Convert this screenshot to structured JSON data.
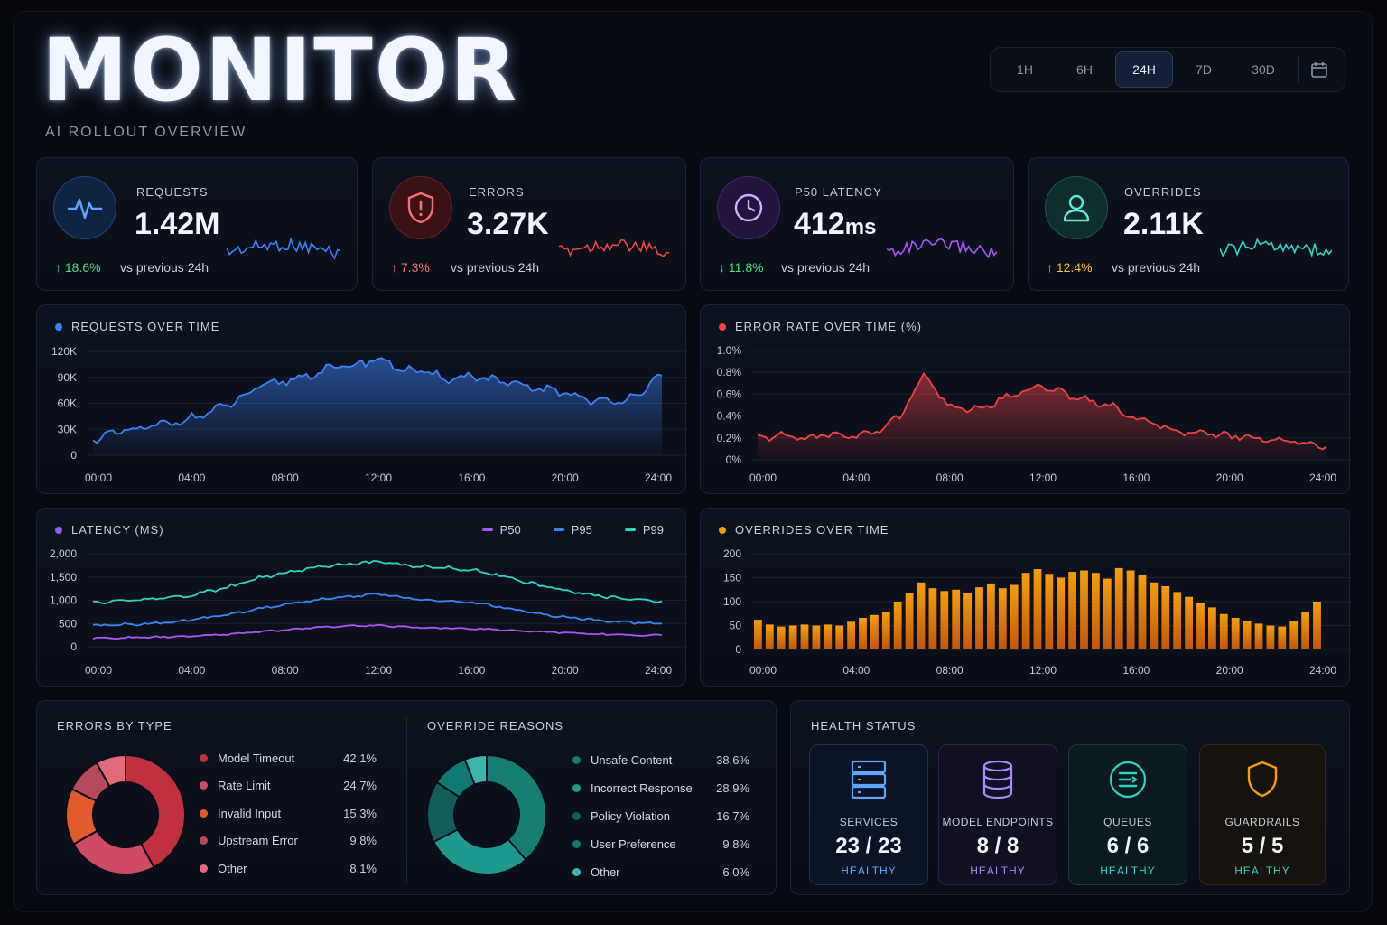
{
  "header": {
    "title": "MONITOR",
    "subtitle": "AI ROLLOUT OVERVIEW",
    "range_options": [
      "1H",
      "6H",
      "24H",
      "7D",
      "30D"
    ],
    "range_selected": "24H"
  },
  "kpis": [
    {
      "label": "REQUESTS",
      "value": "1.42M",
      "unit": "",
      "delta": "18.6%",
      "direction": "up",
      "compare": "vs previous 24h",
      "color": "#3b82f6",
      "icon": "pulse-icon"
    },
    {
      "label": "ERRORS",
      "value": "3.27K",
      "unit": "",
      "delta": "7.3%",
      "direction": "up",
      "compare": "vs previous 24h",
      "color": "#ef4444",
      "icon": "shield-alert-icon"
    },
    {
      "label": "P50 LATENCY",
      "value": "412",
      "unit": "ms",
      "delta": "11.8%",
      "direction": "down",
      "compare": "vs previous 24h",
      "color": "#8b5cf6",
      "icon": "clock-icon"
    },
    {
      "label": "OVERRIDES",
      "value": "2.11K",
      "unit": "",
      "delta": "12.4%",
      "direction": "up",
      "compare": "vs previous 24h",
      "color": "#14b8a6",
      "icon": "user-icon"
    }
  ],
  "panels": {
    "requests": {
      "title": "REQUESTS OVER TIME",
      "color": "#3b82f6"
    },
    "error_rate": {
      "title": "ERROR RATE OVER TIME (%)",
      "color": "#ef4444"
    },
    "latency": {
      "title": "LATENCY (MS)",
      "color": "#8b5cf6"
    },
    "overrides": {
      "title": "OVERRIDES OVER TIME",
      "color": "#f59e0b"
    }
  },
  "chart_data": [
    {
      "type": "area",
      "title": "REQUESTS OVER TIME",
      "x": [
        "00:00",
        "01:00",
        "02:00",
        "03:00",
        "04:00",
        "05:00",
        "06:00",
        "07:00",
        "08:00",
        "09:00",
        "10:00",
        "11:00",
        "12:00",
        "13:00",
        "14:00",
        "15:00",
        "16:00",
        "17:00",
        "18:00",
        "19:00",
        "20:00",
        "21:00",
        "22:00",
        "23:00",
        "24:00"
      ],
      "x_ticks": [
        "00:00",
        "04:00",
        "08:00",
        "12:00",
        "16:00",
        "20:00",
        "24:00"
      ],
      "y_ticks": [
        "0",
        "30K",
        "60K",
        "90K",
        "120K"
      ],
      "ylim": [
        0,
        120000
      ],
      "series": [
        {
          "values": [
            18000,
            26000,
            30000,
            36000,
            42000,
            50000,
            62000,
            78000,
            85000,
            92000,
            100000,
            104000,
            112000,
            100000,
            95000,
            88000,
            92000,
            86000,
            80000,
            76000,
            72000,
            64000,
            60000,
            72000,
            92000
          ]
        }
      ]
    },
    {
      "type": "area",
      "title": "ERROR RATE OVER TIME (%)",
      "x": [
        "00:00",
        "01:00",
        "02:00",
        "03:00",
        "04:00",
        "05:00",
        "06:00",
        "07:00",
        "08:00",
        "09:00",
        "10:00",
        "11:00",
        "12:00",
        "13:00",
        "14:00",
        "15:00",
        "16:00",
        "17:00",
        "18:00",
        "19:00",
        "20:00",
        "21:00",
        "22:00",
        "23:00",
        "24:00"
      ],
      "x_ticks": [
        "00:00",
        "04:00",
        "08:00",
        "12:00",
        "16:00",
        "20:00",
        "24:00"
      ],
      "y_ticks": [
        "0%",
        "0.2%",
        "0.4%",
        "0.6%",
        "0.8%",
        "1.0%"
      ],
      "ylim": [
        0,
        1.0
      ],
      "series": [
        {
          "values": [
            0.2,
            0.22,
            0.2,
            0.23,
            0.22,
            0.25,
            0.4,
            0.78,
            0.5,
            0.45,
            0.52,
            0.62,
            0.68,
            0.6,
            0.55,
            0.48,
            0.38,
            0.3,
            0.26,
            0.24,
            0.22,
            0.2,
            0.18,
            0.16,
            0.12
          ]
        }
      ]
    },
    {
      "type": "line",
      "title": "LATENCY (MS)",
      "x": [
        "00:00",
        "01:00",
        "02:00",
        "03:00",
        "04:00",
        "05:00",
        "06:00",
        "07:00",
        "08:00",
        "09:00",
        "10:00",
        "11:00",
        "12:00",
        "13:00",
        "14:00",
        "15:00",
        "16:00",
        "17:00",
        "18:00",
        "19:00",
        "20:00",
        "21:00",
        "22:00",
        "23:00",
        "24:00"
      ],
      "x_ticks": [
        "00:00",
        "04:00",
        "08:00",
        "12:00",
        "16:00",
        "20:00",
        "24:00"
      ],
      "y_ticks": [
        "0",
        "500",
        "1,000",
        "1,500",
        "2,000"
      ],
      "ylim": [
        0,
        2000
      ],
      "series": [
        {
          "name": "P50",
          "color": "#a855f7",
          "values": [
            180,
            190,
            200,
            210,
            220,
            250,
            280,
            320,
            360,
            400,
            430,
            450,
            460,
            430,
            410,
            400,
            390,
            370,
            340,
            320,
            300,
            280,
            260,
            250,
            250
          ]
        },
        {
          "name": "P95",
          "color": "#3b82f6",
          "values": [
            450,
            470,
            490,
            520,
            560,
            640,
            720,
            820,
            900,
            980,
            1040,
            1080,
            1150,
            1060,
            1000,
            980,
            960,
            880,
            780,
            700,
            640,
            580,
            540,
            520,
            500
          ]
        },
        {
          "name": "P99",
          "color": "#2dd4bf",
          "values": [
            950,
            980,
            1010,
            1050,
            1100,
            1200,
            1320,
            1480,
            1580,
            1680,
            1740,
            1780,
            1820,
            1760,
            1720,
            1700,
            1640,
            1560,
            1420,
            1300,
            1200,
            1120,
            1060,
            1010,
            980
          ]
        }
      ]
    },
    {
      "type": "bar",
      "title": "OVERRIDES OVER TIME",
      "x_ticks": [
        "00:00",
        "04:00",
        "08:00",
        "12:00",
        "16:00",
        "20:00",
        "24:00"
      ],
      "y_ticks": [
        "0",
        "50",
        "100",
        "150",
        "200"
      ],
      "ylim": [
        0,
        200
      ],
      "series": [
        {
          "values": [
            62,
            52,
            48,
            50,
            52,
            50,
            52,
            50,
            58,
            66,
            72,
            78,
            100,
            118,
            140,
            128,
            122,
            125,
            118,
            130,
            138,
            128,
            135,
            160,
            168,
            158,
            150,
            162,
            165,
            160,
            148,
            170,
            165,
            155,
            140,
            132,
            120,
            110,
            98,
            88,
            74,
            66,
            60,
            54,
            50,
            48,
            60,
            78,
            100
          ]
        }
      ]
    },
    {
      "type": "pie",
      "title": "ERRORS BY TYPE",
      "categories": [
        "Model Timeout",
        "Rate Limit",
        "Invalid Input",
        "Upstream Error",
        "Other"
      ],
      "values": [
        42.1,
        24.7,
        15.3,
        9.8,
        8.1
      ],
      "labels": [
        "42.1%",
        "24.7%",
        "15.3%",
        "9.8%",
        "8.1%"
      ],
      "colors": [
        "#c0303f",
        "#cf4a64",
        "#e35a2c",
        "#b8495a",
        "#e36a78"
      ]
    },
    {
      "type": "pie",
      "title": "OVERRIDE REASONS",
      "categories": [
        "Unsafe Content",
        "Incorrect Response",
        "Policy Violation",
        "User Preference",
        "Other"
      ],
      "values": [
        38.6,
        28.9,
        16.7,
        9.8,
        6.0
      ],
      "labels": [
        "38.6%",
        "28.9%",
        "16.7%",
        "9.8%",
        "6.0%"
      ],
      "colors": [
        "#167d73",
        "#1e9b8e",
        "#115f5a",
        "#0f7a72",
        "#3ab7aa"
      ]
    }
  ],
  "health": {
    "title": "HEALTH STATUS",
    "items": [
      {
        "label": "SERVICES",
        "value": "23 / 23",
        "status": "HEALTHY",
        "color": "#3b82f6",
        "icon": "server-icon"
      },
      {
        "label": "MODEL ENDPOINTS",
        "value": "8 / 8",
        "status": "HEALTHY",
        "color": "#8b5cf6",
        "icon": "database-icon"
      },
      {
        "label": "QUEUES",
        "value": "6 / 6",
        "status": "HEALTHY",
        "color": "#14b8a6",
        "icon": "queue-icon"
      },
      {
        "label": "GUARDRAILS",
        "value": "5 / 5",
        "status": "HEALTHY",
        "color": "#f59e0b",
        "icon": "shield-icon"
      }
    ]
  }
}
